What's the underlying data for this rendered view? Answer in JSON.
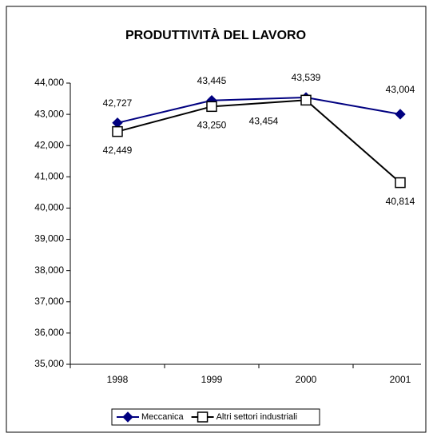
{
  "chart_data": {
    "type": "line",
    "title": "PRODUTTIVITÀ DEL LAVORO",
    "categories": [
      "1998",
      "1999",
      "2000",
      "2001"
    ],
    "series": [
      {
        "name": "Meccanica",
        "color": "#000080",
        "marker": "diamond",
        "values": [
          42727,
          43445,
          43539,
          43004
        ],
        "value_labels": [
          "42,727",
          "43,445",
          "43,539",
          "43,004"
        ]
      },
      {
        "name": "Altri settori industriali",
        "color": "#000000",
        "marker": "square",
        "values": [
          42449,
          43250,
          43454,
          40814
        ],
        "value_labels": [
          "42,449",
          "43,250",
          "43,454",
          "40,814"
        ]
      }
    ],
    "ylim": [
      35000,
      44000
    ],
    "yticks": [
      {
        "value": 35000,
        "label": "35,000"
      },
      {
        "value": 36000,
        "label": "36,000"
      },
      {
        "value": 37000,
        "label": "37,000"
      },
      {
        "value": 38000,
        "label": "38,000"
      },
      {
        "value": 39000,
        "label": "39,000"
      },
      {
        "value": 40000,
        "label": "40,000"
      },
      {
        "value": 41000,
        "label": "41,000"
      },
      {
        "value": 42000,
        "label": "42,000"
      },
      {
        "value": 43000,
        "label": "43,000"
      },
      {
        "value": 44000,
        "label": "44,000"
      }
    ],
    "grid": false,
    "legend": "bottom"
  }
}
